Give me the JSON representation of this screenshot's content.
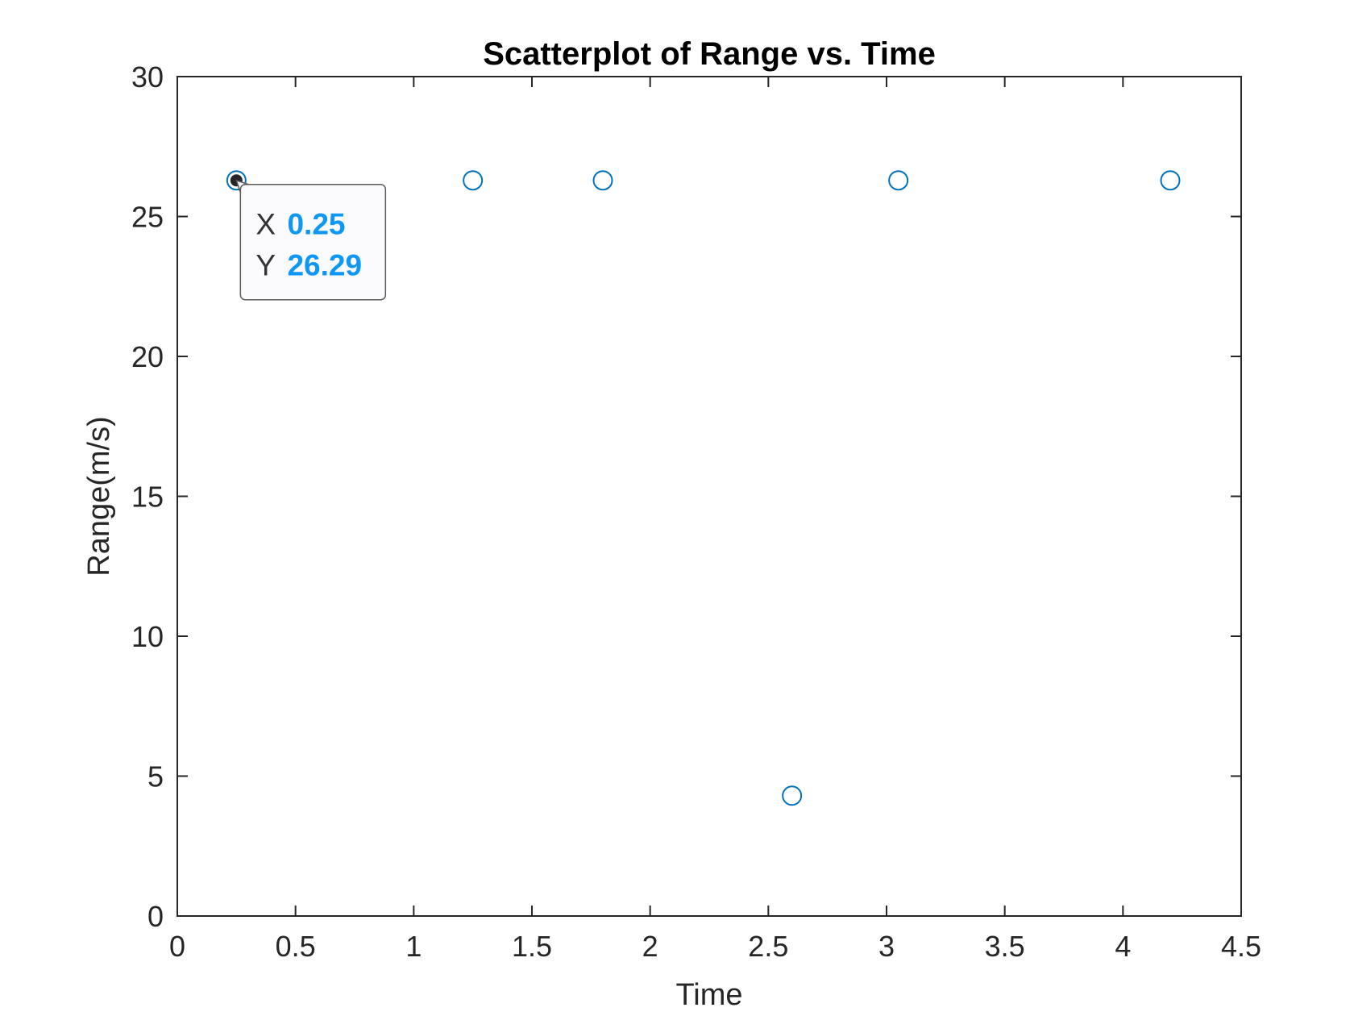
{
  "chart_data": {
    "type": "scatter",
    "title": "Scatterplot of Range vs. Time",
    "xlabel": "Time",
    "ylabel": "Range(m/s)",
    "xlim": [
      0,
      4.5
    ],
    "ylim": [
      0,
      30
    ],
    "xticks": [
      0,
      0.5,
      1,
      1.5,
      2,
      2.5,
      3,
      3.5,
      4,
      4.5
    ],
    "xtick_labels": [
      "0",
      "0.5",
      "1",
      "1.5",
      "2",
      "2.5",
      "3",
      "3.5",
      "4",
      "4.5"
    ],
    "yticks": [
      0,
      5,
      10,
      15,
      20,
      25,
      30
    ],
    "ytick_labels": [
      "0",
      "5",
      "10",
      "15",
      "20",
      "25",
      "30"
    ],
    "grid": false,
    "marker": "open-circle",
    "marker_color": "#0072BD",
    "points": [
      {
        "x": 0.25,
        "y": 26.29
      },
      {
        "x": 1.25,
        "y": 26.29
      },
      {
        "x": 1.8,
        "y": 26.29
      },
      {
        "x": 2.6,
        "y": 4.3
      },
      {
        "x": 3.05,
        "y": 26.29
      },
      {
        "x": 4.2,
        "y": 26.29
      }
    ],
    "datatip": {
      "x_key": "X",
      "x_value": "0.25",
      "y_key": "Y",
      "y_value": "26.29",
      "value_color": "#0E97F4",
      "selected_point_index": 0
    }
  }
}
